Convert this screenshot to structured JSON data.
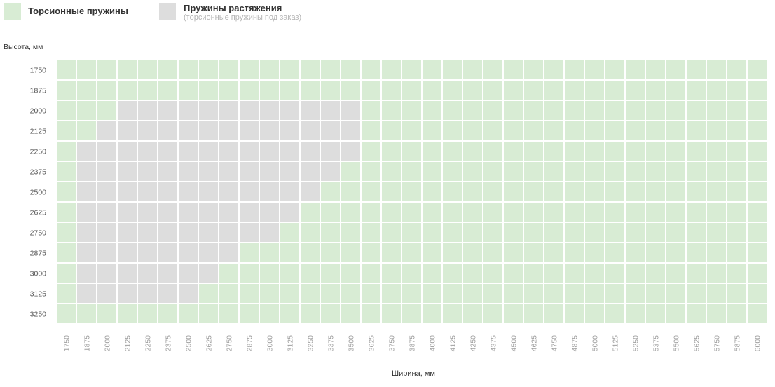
{
  "legend": {
    "torsion": {
      "label": "Торсионные пружины",
      "color": "#d8ecd4"
    },
    "extension": {
      "label": "Пружины растяжения",
      "sublabel": "(торсионные пружины под заказ)",
      "color": "#dddddd"
    }
  },
  "chart_data": {
    "type": "heatmap",
    "xlabel": "Ширина, мм",
    "ylabel": "Высота, мм",
    "x": [
      1750,
      1875,
      2000,
      2125,
      2250,
      2375,
      2500,
      2625,
      2750,
      2875,
      3000,
      3125,
      3250,
      3375,
      3500,
      3625,
      3750,
      3875,
      4000,
      4125,
      4250,
      4375,
      4500,
      4625,
      4750,
      4875,
      5000,
      5125,
      5250,
      5375,
      5500,
      5625,
      5750,
      5875,
      6000
    ],
    "y": [
      1750,
      1875,
      2000,
      2125,
      2250,
      2375,
      2500,
      2625,
      2750,
      2875,
      3000,
      3125,
      3250
    ],
    "categories": [
      "Торсионные пружины",
      "Пружины растяжения"
    ],
    "colors": [
      "#d8ecd4",
      "#dddddd"
    ],
    "extension_ranges": [
      {
        "height": 2000,
        "width_from": 2125,
        "width_to": 3500
      },
      {
        "height": 2125,
        "width_from": 2000,
        "width_to": 3500
      },
      {
        "height": 2250,
        "width_from": 1875,
        "width_to": 3500
      },
      {
        "height": 2375,
        "width_from": 1875,
        "width_to": 3375
      },
      {
        "height": 2500,
        "width_from": 1875,
        "width_to": 3250
      },
      {
        "height": 2625,
        "width_from": 1875,
        "width_to": 3125
      },
      {
        "height": 2750,
        "width_from": 1875,
        "width_to": 3000
      },
      {
        "height": 2875,
        "width_from": 1875,
        "width_to": 2750
      },
      {
        "height": 3000,
        "width_from": 1875,
        "width_to": 2625
      },
      {
        "height": 3125,
        "width_from": 1875,
        "width_to": 2500
      }
    ]
  }
}
